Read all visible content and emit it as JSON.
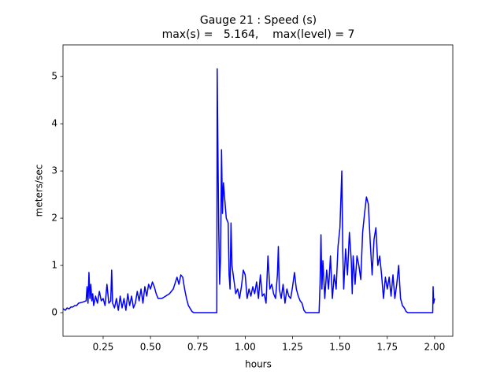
{
  "chart_data": {
    "type": "line",
    "title": "Gauge 21 : Speed (s)",
    "subtitle": "max(s) =   5.164,    max(level) = 7",
    "x_label": "hours",
    "y_label": "meters/sec",
    "xlim": [
      0.038,
      2.096
    ],
    "ylim": [
      -0.5,
      5.67
    ],
    "xticks": [
      0.25,
      {
        "value": 0.5,
        "label": "0.50"
      },
      0.75,
      {
        "value": 1.0,
        "label": "1.00"
      },
      1.25,
      {
        "value": 1.5,
        "label": "1.50"
      },
      1.75,
      {
        "value": 2.0,
        "label": "2.00"
      }
    ],
    "yticks": [
      0,
      1,
      2,
      3,
      4,
      5
    ],
    "series": [
      {
        "color": "#0000ff",
        "x": [
          0.03,
          0.04,
          0.05,
          0.06,
          0.07,
          0.08,
          0.09,
          0.1,
          0.11,
          0.12,
          0.14,
          0.16,
          0.165,
          0.17,
          0.175,
          0.18,
          0.185,
          0.19,
          0.195,
          0.2,
          0.21,
          0.22,
          0.23,
          0.24,
          0.25,
          0.26,
          0.27,
          0.28,
          0.29,
          0.295,
          0.3,
          0.31,
          0.32,
          0.33,
          0.34,
          0.35,
          0.36,
          0.37,
          0.38,
          0.39,
          0.4,
          0.41,
          0.42,
          0.43,
          0.44,
          0.45,
          0.46,
          0.47,
          0.48,
          0.49,
          0.5,
          0.51,
          0.52,
          0.53,
          0.54,
          0.56,
          0.58,
          0.6,
          0.62,
          0.64,
          0.65,
          0.66,
          0.67,
          0.68,
          0.69,
          0.7,
          0.72,
          0.73,
          0.85,
          0.852,
          0.855,
          0.86,
          0.865,
          0.87,
          0.875,
          0.88,
          0.885,
          0.89,
          0.9,
          0.91,
          0.915,
          0.92,
          0.925,
          0.93,
          0.94,
          0.95,
          0.96,
          0.97,
          0.98,
          0.99,
          1.0,
          1.01,
          1.02,
          1.03,
          1.04,
          1.05,
          1.06,
          1.07,
          1.08,
          1.09,
          1.1,
          1.11,
          1.12,
          1.13,
          1.14,
          1.15,
          1.16,
          1.17,
          1.175,
          1.18,
          1.19,
          1.2,
          1.21,
          1.22,
          1.23,
          1.24,
          1.25,
          1.26,
          1.27,
          1.28,
          1.29,
          1.3,
          1.31,
          1.32,
          1.39,
          1.395,
          1.4,
          1.405,
          1.41,
          1.42,
          1.43,
          1.44,
          1.45,
          1.46,
          1.47,
          1.48,
          1.49,
          1.5,
          1.505,
          1.51,
          1.515,
          1.52,
          1.53,
          1.54,
          1.55,
          1.56,
          1.565,
          1.57,
          1.58,
          1.59,
          1.6,
          1.61,
          1.62,
          1.63,
          1.64,
          1.65,
          1.66,
          1.67,
          1.68,
          1.69,
          1.7,
          1.71,
          1.72,
          1.73,
          1.74,
          1.75,
          1.76,
          1.77,
          1.78,
          1.79,
          1.8,
          1.81,
          1.82,
          1.83,
          1.84,
          1.85,
          1.86,
          1.99,
          1.992,
          1.995,
          2.0
        ],
        "values": [
          0.05,
          0.08,
          0.05,
          0.1,
          0.08,
          0.12,
          0.12,
          0.15,
          0.15,
          0.2,
          0.22,
          0.25,
          0.55,
          0.2,
          0.85,
          0.3,
          0.6,
          0.25,
          0.4,
          0.15,
          0.35,
          0.2,
          0.45,
          0.25,
          0.3,
          0.15,
          0.6,
          0.2,
          0.25,
          0.9,
          0.2,
          0.1,
          0.3,
          0.05,
          0.35,
          0.1,
          0.3,
          0.05,
          0.4,
          0.15,
          0.35,
          0.1,
          0.2,
          0.45,
          0.25,
          0.5,
          0.2,
          0.55,
          0.35,
          0.6,
          0.5,
          0.65,
          0.55,
          0.4,
          0.3,
          0.3,
          0.35,
          0.4,
          0.5,
          0.75,
          0.6,
          0.8,
          0.75,
          0.5,
          0.3,
          0.15,
          0.02,
          0,
          0,
          5.164,
          3.8,
          1.8,
          0.6,
          1.2,
          3.45,
          2.1,
          2.75,
          2.5,
          2.0,
          1.9,
          0.8,
          0.5,
          1.9,
          1.0,
          0.7,
          0.4,
          0.5,
          0.3,
          0.55,
          0.9,
          0.8,
          0.3,
          0.5,
          0.35,
          0.55,
          0.4,
          0.65,
          0.3,
          0.8,
          0.35,
          0.4,
          0.2,
          1.2,
          0.5,
          0.6,
          0.4,
          0.3,
          0.8,
          1.4,
          0.5,
          0.3,
          0.6,
          0.2,
          0.5,
          0.35,
          0.3,
          0.55,
          0.85,
          0.5,
          0.35,
          0.25,
          0.2,
          0.05,
          0,
          0,
          0.6,
          1.65,
          0.5,
          1.1,
          0.3,
          0.9,
          0.5,
          1.2,
          0.3,
          0.8,
          0.5,
          1.4,
          1.8,
          2.4,
          3.0,
          1.3,
          0.5,
          1.35,
          0.8,
          1.7,
          1.1,
          0.4,
          1.2,
          0.6,
          1.2,
          1.0,
          0.7,
          1.7,
          2.1,
          2.45,
          2.3,
          1.5,
          0.8,
          1.55,
          1.8,
          1.0,
          1.2,
          0.8,
          0.3,
          0.75,
          0.5,
          0.75,
          0.35,
          0.8,
          0.3,
          0.6,
          1.0,
          0.3,
          0.15,
          0.1,
          0.02,
          0,
          0,
          0.55,
          0.2,
          0.3
        ]
      }
    ]
  }
}
